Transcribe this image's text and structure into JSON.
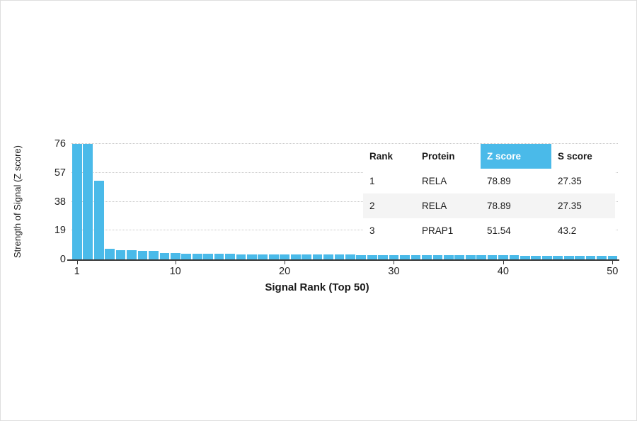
{
  "chart_data": {
    "type": "bar",
    "title": "",
    "xlabel": "Signal Rank (Top 50)",
    "ylabel": "Strength of Signal (Z score)",
    "x": [
      1,
      2,
      3,
      4,
      5,
      6,
      7,
      8,
      9,
      10,
      11,
      12,
      13,
      14,
      15,
      16,
      17,
      18,
      19,
      20,
      21,
      22,
      23,
      24,
      25,
      26,
      27,
      28,
      29,
      30,
      31,
      32,
      33,
      34,
      35,
      36,
      37,
      38,
      39,
      40,
      41,
      42,
      43,
      44,
      45,
      46,
      47,
      48,
      49,
      50
    ],
    "values": [
      78.89,
      78.89,
      51.54,
      6.8,
      6.3,
      6.0,
      5.8,
      5.4,
      4.3,
      4.0,
      3.9,
      3.8,
      3.7,
      3.6,
      3.6,
      3.5,
      3.5,
      3.4,
      3.4,
      3.3,
      3.3,
      3.2,
      3.2,
      3.2,
      3.1,
      3.1,
      3.0,
      3.0,
      3.0,
      2.9,
      2.9,
      2.9,
      2.8,
      2.8,
      2.8,
      2.7,
      2.7,
      2.7,
      2.6,
      2.6,
      2.6,
      2.5,
      2.5,
      2.5,
      2.4,
      2.4,
      2.4,
      2.3,
      2.3,
      2.3
    ],
    "ylim": [
      0,
      76
    ],
    "yticks": [
      0,
      19,
      38,
      57,
      76
    ],
    "xticks": [
      1,
      10,
      20,
      30,
      40,
      50
    ],
    "grid": "horizontal-dotted",
    "legend": "none",
    "bar_color": "#4ABAE9",
    "axis_color": "#3a3a3a",
    "note": "Bars for ranks 1 and 2 exceed the y-axis maximum (78.89 > 76) and are clipped at the top of the plot."
  },
  "table": {
    "headers": [
      "Rank",
      "Protein",
      "Z score",
      "S score"
    ],
    "highlighted_header": "Z score",
    "highlight_color": "#4ABAE9",
    "rows": [
      [
        "1",
        "RELA",
        "78.89",
        "27.35"
      ],
      [
        "2",
        "RELA",
        "78.89",
        "27.35"
      ],
      [
        "3",
        "PRAP1",
        "51.54",
        "43.2"
      ]
    ]
  }
}
